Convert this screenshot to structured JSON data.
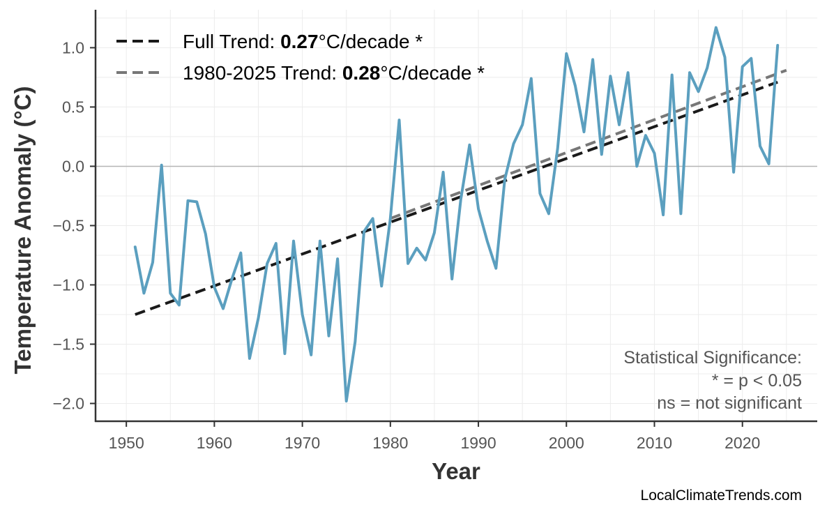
{
  "chart_data": {
    "type": "line",
    "xlabel": "Year",
    "ylabel": "Temperature Anomaly (°C)",
    "xlim": [
      1946.5,
      2028.5
    ],
    "ylim": [
      -2.15,
      1.32
    ],
    "xticks": [
      1950,
      1960,
      1970,
      1980,
      1990,
      2000,
      2010,
      2020
    ],
    "xtick_labels": [
      "1950",
      "1960",
      "1970",
      "1980",
      "1990",
      "2000",
      "2010",
      "2020"
    ],
    "yticks": [
      1.0,
      0.5,
      0.0,
      -0.5,
      -1.0,
      -1.5,
      -2.0
    ],
    "ytick_labels": [
      "1.0",
      "0.5",
      "0.0",
      "−0.5",
      "−1.0",
      "−1.5",
      "−2.0"
    ],
    "grid": true,
    "zero_line": true,
    "legend_position": "top-left",
    "series": [
      {
        "color": "#5b9fbf",
        "x": [
          1951,
          1952,
          1953,
          1954,
          1955,
          1956,
          1957,
          1958,
          1959,
          1960,
          1961,
          1962,
          1963,
          1964,
          1965,
          1966,
          1967,
          1968,
          1969,
          1970,
          1971,
          1972,
          1973,
          1974,
          1975,
          1976,
          1977,
          1978,
          1979,
          1980,
          1981,
          1982,
          1983,
          1984,
          1985,
          1986,
          1987,
          1988,
          1989,
          1990,
          1991,
          1992,
          1993,
          1994,
          1995,
          1996,
          1997,
          1998,
          1999,
          2000,
          2001,
          2002,
          2003,
          2004,
          2005,
          2006,
          2007,
          2008,
          2009,
          2010,
          2011,
          2012,
          2013,
          2014,
          2015,
          2016,
          2017,
          2018,
          2019,
          2020,
          2021,
          2022,
          2023,
          2024
        ],
        "y": [
          -0.68,
          -1.07,
          -0.81,
          0.01,
          -1.07,
          -1.17,
          -0.29,
          -0.3,
          -0.57,
          -1.02,
          -1.2,
          -0.95,
          -0.73,
          -1.62,
          -1.28,
          -0.82,
          -0.65,
          -1.58,
          -0.63,
          -1.25,
          -1.59,
          -0.63,
          -1.43,
          -0.78,
          -1.98,
          -1.48,
          -0.55,
          -0.44,
          -1.01,
          -0.44,
          0.39,
          -0.82,
          -0.69,
          -0.79,
          -0.56,
          -0.05,
          -0.95,
          -0.28,
          0.18,
          -0.36,
          -0.63,
          -0.86,
          -0.11,
          0.19,
          0.35,
          0.74,
          -0.23,
          -0.4,
          0.15,
          0.95,
          0.68,
          0.29,
          0.9,
          0.1,
          0.76,
          0.35,
          0.79,
          0.0,
          0.26,
          0.11,
          -0.41,
          0.77,
          -0.4,
          0.79,
          0.63,
          0.83,
          1.17,
          0.92,
          -0.05,
          0.84,
          0.91,
          0.17,
          0.02,
          1.02
        ]
      }
    ],
    "trend_lines": [
      {
        "label_prefix": "Full Trend: ",
        "value": "0.27",
        "label_suffix": "°C/decade *",
        "color": "#1a1a1a",
        "x": [
          1951,
          2024
        ],
        "y": [
          -1.25,
          0.71
        ]
      },
      {
        "label_prefix": "1980-2025 Trend: ",
        "value": "0.28",
        "label_suffix": "°C/decade *",
        "color": "#777777",
        "x": [
          1980,
          2025
        ],
        "y": [
          -0.44,
          0.81
        ]
      }
    ],
    "annotation": {
      "lines": [
        "Statistical Significance:",
        "* = p < 0.05",
        "ns = not significant"
      ]
    },
    "source": "LocalClimateTrends.com"
  }
}
